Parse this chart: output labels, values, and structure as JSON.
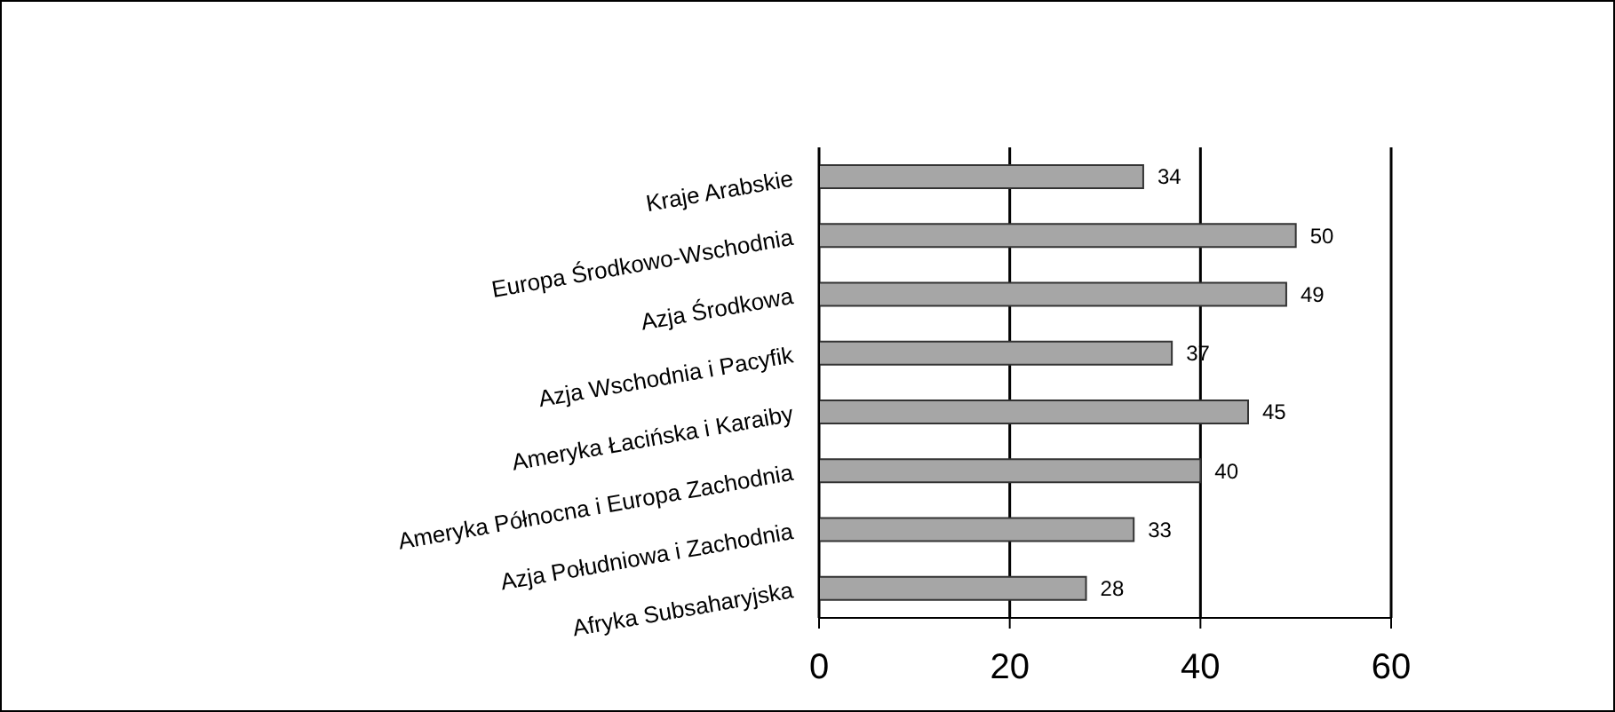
{
  "chart_data": {
    "type": "bar",
    "orientation": "horizontal",
    "categories": [
      "Kraje Arabskie",
      "Europa Środkowo-Wschodnia",
      "Azja Środkowa",
      "Azja Wschodnia i Pacyfik",
      "Ameryka Łacińska i Karaiby",
      "Ameryka Północna i Europa Zachodnia",
      "Azja Południowa i Zachodnia",
      "Afryka Subsaharyjska"
    ],
    "values": [
      34,
      50,
      49,
      37,
      45,
      40,
      33,
      28
    ],
    "color": "#a6a6a6",
    "xlim": [
      0,
      60
    ],
    "xticks": [
      0,
      20,
      40,
      60
    ],
    "grid": "x",
    "data_labels": true
  }
}
